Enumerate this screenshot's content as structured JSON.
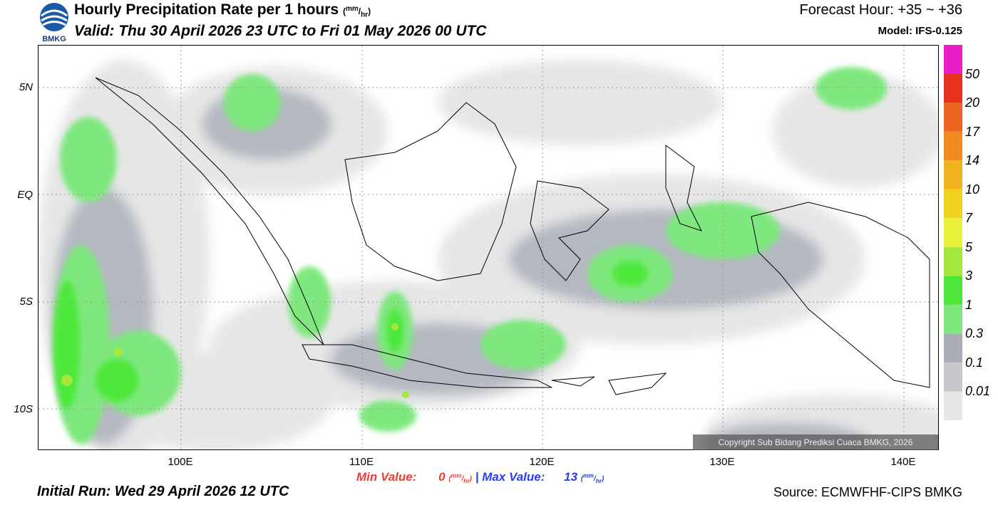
{
  "header": {
    "logo_text": "BMKG",
    "title_text": "Hourly Precipitation Rate per 1 hours",
    "title_unit_num": "mm",
    "title_unit_den": "hr",
    "valid_text": "Valid: Thu 30 April 2026 23 UTC to Fri 01 May 2026 00 UTC",
    "forecast_hour": "Forecast Hour: +35 ~ +36",
    "model": "Model: IFS-0.125"
  },
  "map": {
    "lat_labels": [
      "5N",
      "EQ",
      "5S",
      "10S"
    ],
    "lon_labels": [
      "100E",
      "110E",
      "120E",
      "130E",
      "140E"
    ],
    "copyright": "Copyright Sub Bidang Prediksi Cuaca BMKG, 2026"
  },
  "colorbar": {
    "levels": [
      "0.01",
      "0.1",
      "0.3",
      "1",
      "3",
      "5",
      "7",
      "10",
      "14",
      "17",
      "20",
      "50"
    ],
    "colors": [
      "#e6e6e6",
      "#c8c8cc",
      "#a9adb6",
      "#7ee87e",
      "#4ee83a",
      "#a6e83a",
      "#e8f03a",
      "#f0d21e",
      "#f0b41e",
      "#f08c1e",
      "#ea6420",
      "#e8321e",
      "#e81ec8"
    ]
  },
  "footer": {
    "min_label": "Min Value:",
    "min_value": "0",
    "max_label": "Max Value:",
    "max_value": "13",
    "unit_num": "mm",
    "unit_den": "hr",
    "separator": "|",
    "initial_run": "Initial Run: Wed 29 April 2026 12 UTC",
    "source": "Source: ECMWFHF-CIPS BMKG"
  }
}
